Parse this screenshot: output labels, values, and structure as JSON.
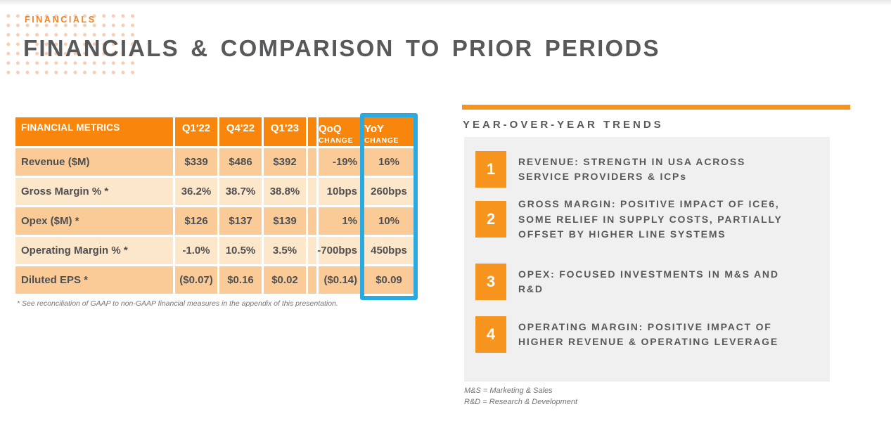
{
  "page": {
    "eyebrow": "FINANCIALS",
    "title": "FINANCIALS & COMPARISON TO PRIOR PERIODS"
  },
  "colors": {
    "accent_orange": "#f7941e",
    "header_orange": "#f8860d",
    "row_dark": "#facb96",
    "row_light": "#fde7cb",
    "highlight_blue": "#29abe2",
    "panel_gray": "#f0f0f0",
    "text_gray": "#58595b"
  },
  "table": {
    "header": {
      "metrics": "FINANCIAL METRICS",
      "quarters": [
        "Q1'22",
        "Q4'22",
        "Q1'23"
      ],
      "qoq": [
        "QoQ",
        "CHANGE"
      ],
      "yoy": [
        "YoY",
        "CHANGE"
      ]
    },
    "rows": [
      {
        "label": "Revenue ($M)",
        "values": [
          "$339",
          "$486",
          "$392",
          "-19%",
          "16%"
        ]
      },
      {
        "label": "Gross Margin % *",
        "values": [
          "36.2%",
          "38.7%",
          "38.8%",
          "10bps",
          "260bps"
        ]
      },
      {
        "label": "Opex ($M) *",
        "values": [
          "$126",
          "$137",
          "$139",
          "1%",
          "10%"
        ]
      },
      {
        "label": "Operating Margin % *",
        "values": [
          "-1.0%",
          "10.5%",
          "3.5%",
          "-700bps",
          "450bps"
        ]
      },
      {
        "label": "Diluted EPS *",
        "values": [
          "($0.07)",
          "$0.16",
          "$0.02",
          "($0.14)",
          "$0.09"
        ]
      }
    ],
    "footnote": "* See reconciliation of GAAP to non-GAAP financial measures in the appendix of this presentation."
  },
  "trends": {
    "heading": "YEAR-OVER-YEAR TRENDS",
    "items": [
      {
        "number": "1",
        "lines": [
          "REVENUE: STRENGTH IN USA ACROSS",
          "SERVICE PROVIDERS & ICPs"
        ]
      },
      {
        "number": "2",
        "lines": [
          "GROSS MARGIN: POSITIVE IMPACT OF ICE6,",
          "SOME RELIEF IN SUPPLY COSTS, PARTIALLY",
          "OFFSET BY HIGHER LINE SYSTEMS"
        ]
      },
      {
        "number": "3",
        "lines": [
          "OPEX: FOCUSED INVESTMENTS IN M&S AND",
          "R&D"
        ]
      },
      {
        "number": "4",
        "lines": [
          "OPERATING MARGIN: POSITIVE IMPACT OF",
          "HIGHER REVENUE & OPERATING LEVERAGE"
        ]
      }
    ],
    "footnotes": [
      "M&S = Marketing & Sales",
      "R&D = Research & Development"
    ]
  }
}
